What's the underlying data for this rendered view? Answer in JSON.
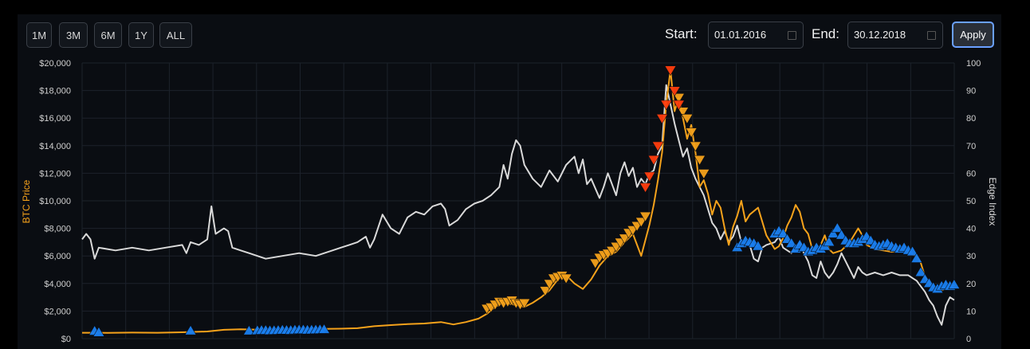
{
  "toolbar": {
    "range_buttons": [
      "1M",
      "3M",
      "6M",
      "1Y",
      "ALL"
    ],
    "start_label": "Start:",
    "start_value": "01.01.2016",
    "end_label": "End:",
    "end_value": "30.12.2018",
    "apply_label": "Apply"
  },
  "colors": {
    "price": "#f5a21b",
    "edge": "#d9d9d9",
    "buy_marker": "#1a7ff0",
    "sell_strong": "#ff3d0d",
    "sell_marker": "#f5a21b",
    "grid": "#1c222b",
    "background": "#0a0d12"
  },
  "chart_data": {
    "type": "line",
    "ylabel": "BTC Price",
    "y2label": "Edge Index",
    "ylim": [
      0,
      20000
    ],
    "y2lim": [
      0,
      100
    ],
    "yticks": [
      "$0",
      "$2,000",
      "$4,000",
      "$6,000",
      "$8,000",
      "$10,000",
      "$12,000",
      "$14,000",
      "$16,000",
      "$18,000",
      "$20,000"
    ],
    "y2ticks": [
      "0",
      "10",
      "20",
      "30",
      "40",
      "50",
      "60",
      "70",
      "80",
      "90",
      "100"
    ],
    "grid": true,
    "series": [
      {
        "role": "price",
        "points": [
          [
            0.0,
            430
          ],
          [
            0.03,
            420
          ],
          [
            0.06,
            440
          ],
          [
            0.09,
            430
          ],
          [
            0.12,
            460
          ],
          [
            0.15,
            520
          ],
          [
            0.17,
            640
          ],
          [
            0.19,
            680
          ],
          [
            0.21,
            650
          ],
          [
            0.23,
            630
          ],
          [
            0.25,
            660
          ],
          [
            0.27,
            700
          ],
          [
            0.29,
            710
          ],
          [
            0.31,
            720
          ],
          [
            0.33,
            760
          ],
          [
            0.35,
            900
          ],
          [
            0.37,
            980
          ],
          [
            0.39,
            1050
          ],
          [
            0.41,
            1100
          ],
          [
            0.43,
            1200
          ],
          [
            0.445,
            1030
          ],
          [
            0.46,
            1200
          ],
          [
            0.475,
            1450
          ],
          [
            0.485,
            1800
          ],
          [
            0.495,
            2300
          ],
          [
            0.505,
            2600
          ],
          [
            0.515,
            2500
          ],
          [
            0.53,
            2300
          ],
          [
            0.54,
            2600
          ],
          [
            0.55,
            3000
          ],
          [
            0.56,
            3500
          ],
          [
            0.57,
            4300
          ],
          [
            0.58,
            4600
          ],
          [
            0.59,
            4000
          ],
          [
            0.6,
            3600
          ],
          [
            0.61,
            4300
          ],
          [
            0.62,
            5300
          ],
          [
            0.63,
            6000
          ],
          [
            0.64,
            6300
          ],
          [
            0.65,
            7000
          ],
          [
            0.66,
            7600
          ],
          [
            0.67,
            6000
          ],
          [
            0.68,
            8300
          ],
          [
            0.685,
            9700
          ],
          [
            0.69,
            11500
          ],
          [
            0.695,
            13500
          ],
          [
            0.7,
            17000
          ],
          [
            0.705,
            19500
          ],
          [
            0.71,
            16500
          ],
          [
            0.715,
            17500
          ],
          [
            0.72,
            16000
          ],
          [
            0.725,
            14500
          ],
          [
            0.73,
            15500
          ],
          [
            0.735,
            13500
          ],
          [
            0.74,
            11000
          ],
          [
            0.745,
            11500
          ],
          [
            0.75,
            10500
          ],
          [
            0.755,
            9000
          ],
          [
            0.76,
            10000
          ],
          [
            0.765,
            9500
          ],
          [
            0.77,
            8000
          ],
          [
            0.775,
            6800
          ],
          [
            0.78,
            8100
          ],
          [
            0.785,
            8900
          ],
          [
            0.79,
            10000
          ],
          [
            0.795,
            8500
          ],
          [
            0.8,
            9000
          ],
          [
            0.81,
            9500
          ],
          [
            0.82,
            7500
          ],
          [
            0.83,
            6500
          ],
          [
            0.835,
            6700
          ],
          [
            0.84,
            7300
          ],
          [
            0.845,
            8200
          ],
          [
            0.85,
            8800
          ],
          [
            0.855,
            9700
          ],
          [
            0.86,
            9200
          ],
          [
            0.865,
            8000
          ],
          [
            0.87,
            7600
          ],
          [
            0.875,
            6500
          ],
          [
            0.88,
            6200
          ],
          [
            0.885,
            6800
          ],
          [
            0.89,
            7500
          ],
          [
            0.895,
            6500
          ],
          [
            0.9,
            6200
          ],
          [
            0.91,
            6400
          ],
          [
            0.92,
            7000
          ],
          [
            0.93,
            8000
          ],
          [
            0.935,
            7500
          ],
          [
            0.94,
            6800
          ],
          [
            0.95,
            6500
          ],
          [
            0.96,
            6400
          ],
          [
            0.97,
            6300
          ],
          [
            0.98,
            6400
          ],
          [
            0.99,
            6300
          ],
          [
            0.995,
            6100
          ],
          [
            1.0,
            6000
          ],
          [
            1.005,
            5500
          ],
          [
            1.01,
            4500
          ],
          [
            1.015,
            4000
          ],
          [
            1.02,
            3700
          ],
          [
            1.03,
            3500
          ],
          [
            1.04,
            3700
          ],
          [
            1.045,
            3900
          ]
        ]
      },
      {
        "role": "edge_index",
        "points": [
          [
            0.0,
            36
          ],
          [
            0.005,
            38
          ],
          [
            0.01,
            36
          ],
          [
            0.015,
            29
          ],
          [
            0.02,
            33
          ],
          [
            0.04,
            32
          ],
          [
            0.06,
            33
          ],
          [
            0.08,
            32
          ],
          [
            0.1,
            33
          ],
          [
            0.12,
            34
          ],
          [
            0.125,
            31
          ],
          [
            0.13,
            35
          ],
          [
            0.14,
            34
          ],
          [
            0.15,
            36
          ],
          [
            0.155,
            48
          ],
          [
            0.16,
            38
          ],
          [
            0.17,
            40
          ],
          [
            0.175,
            39
          ],
          [
            0.18,
            33
          ],
          [
            0.19,
            32
          ],
          [
            0.2,
            31
          ],
          [
            0.22,
            29
          ],
          [
            0.24,
            30
          ],
          [
            0.26,
            31
          ],
          [
            0.28,
            30
          ],
          [
            0.3,
            32
          ],
          [
            0.31,
            33
          ],
          [
            0.32,
            34
          ],
          [
            0.33,
            35
          ],
          [
            0.34,
            37
          ],
          [
            0.345,
            33
          ],
          [
            0.35,
            36
          ],
          [
            0.36,
            45
          ],
          [
            0.37,
            40
          ],
          [
            0.38,
            38
          ],
          [
            0.39,
            44
          ],
          [
            0.4,
            46
          ],
          [
            0.41,
            45
          ],
          [
            0.42,
            48
          ],
          [
            0.43,
            49
          ],
          [
            0.435,
            47
          ],
          [
            0.44,
            41
          ],
          [
            0.45,
            43
          ],
          [
            0.46,
            47
          ],
          [
            0.47,
            49
          ],
          [
            0.48,
            50
          ],
          [
            0.49,
            52
          ],
          [
            0.5,
            55
          ],
          [
            0.505,
            63
          ],
          [
            0.51,
            58
          ],
          [
            0.515,
            67
          ],
          [
            0.52,
            72
          ],
          [
            0.525,
            70
          ],
          [
            0.53,
            63
          ],
          [
            0.54,
            58
          ],
          [
            0.55,
            55
          ],
          [
            0.56,
            61
          ],
          [
            0.57,
            57
          ],
          [
            0.58,
            63
          ],
          [
            0.59,
            66
          ],
          [
            0.595,
            60
          ],
          [
            0.6,
            65
          ],
          [
            0.605,
            56
          ],
          [
            0.61,
            58
          ],
          [
            0.62,
            51
          ],
          [
            0.625,
            55
          ],
          [
            0.63,
            60
          ],
          [
            0.635,
            56
          ],
          [
            0.64,
            52
          ],
          [
            0.645,
            60
          ],
          [
            0.65,
            64
          ],
          [
            0.655,
            59
          ],
          [
            0.66,
            62
          ],
          [
            0.665,
            55
          ],
          [
            0.67,
            58
          ],
          [
            0.675,
            56
          ],
          [
            0.68,
            60
          ],
          [
            0.685,
            61
          ],
          [
            0.69,
            67
          ],
          [
            0.695,
            70
          ],
          [
            0.7,
            92
          ],
          [
            0.705,
            85
          ],
          [
            0.71,
            78
          ],
          [
            0.715,
            72
          ],
          [
            0.72,
            66
          ],
          [
            0.725,
            69
          ],
          [
            0.73,
            62
          ],
          [
            0.735,
            58
          ],
          [
            0.74,
            55
          ],
          [
            0.745,
            52
          ],
          [
            0.75,
            47
          ],
          [
            0.755,
            42
          ],
          [
            0.76,
            40
          ],
          [
            0.765,
            36
          ],
          [
            0.77,
            39
          ],
          [
            0.775,
            35
          ],
          [
            0.78,
            37
          ],
          [
            0.785,
            41
          ],
          [
            0.79,
            35
          ],
          [
            0.8,
            34
          ],
          [
            0.805,
            29
          ],
          [
            0.81,
            28
          ],
          [
            0.815,
            33
          ],
          [
            0.82,
            34
          ],
          [
            0.83,
            35
          ],
          [
            0.835,
            37
          ],
          [
            0.84,
            33
          ],
          [
            0.85,
            31
          ],
          [
            0.86,
            35
          ],
          [
            0.865,
            31
          ],
          [
            0.87,
            28
          ],
          [
            0.875,
            23
          ],
          [
            0.88,
            22
          ],
          [
            0.885,
            28
          ],
          [
            0.89,
            24
          ],
          [
            0.895,
            22
          ],
          [
            0.9,
            24
          ],
          [
            0.905,
            27
          ],
          [
            0.91,
            31
          ],
          [
            0.915,
            28
          ],
          [
            0.92,
            25
          ],
          [
            0.925,
            22
          ],
          [
            0.93,
            26
          ],
          [
            0.935,
            24
          ],
          [
            0.94,
            23
          ],
          [
            0.95,
            24
          ],
          [
            0.96,
            23
          ],
          [
            0.97,
            24
          ],
          [
            0.98,
            23
          ],
          [
            0.99,
            23
          ],
          [
            0.995,
            22
          ],
          [
            1.0,
            21
          ],
          [
            1.005,
            19
          ],
          [
            1.01,
            17
          ],
          [
            1.015,
            14
          ],
          [
            1.02,
            12
          ],
          [
            1.025,
            8
          ],
          [
            1.03,
            5
          ],
          [
            1.035,
            12
          ],
          [
            1.04,
            15
          ],
          [
            1.045,
            14
          ]
        ]
      }
    ],
    "markers": [
      {
        "kind": "buy",
        "x": [
          0.015,
          0.02,
          0.13,
          0.2,
          0.21,
          0.215,
          0.22,
          0.225,
          0.23,
          0.235,
          0.24,
          0.245,
          0.25,
          0.255,
          0.26,
          0.265,
          0.27,
          0.275,
          0.28,
          0.285,
          0.29
        ],
        "y": [
          540,
          440,
          560,
          560,
          580,
          600,
          600,
          580,
          590,
          600,
          620,
          610,
          600,
          630,
          640,
          640,
          620,
          630,
          640,
          650,
          660
        ]
      },
      {
        "kind": "sell",
        "x": [
          0.485,
          0.49,
          0.495,
          0.5,
          0.505,
          0.51,
          0.515,
          0.52,
          0.525,
          0.53,
          0.555,
          0.56,
          0.565,
          0.57,
          0.575,
          0.58,
          0.615,
          0.62,
          0.625,
          0.63,
          0.635,
          0.64,
          0.645,
          0.65,
          0.655,
          0.66,
          0.665,
          0.67,
          0.675,
          0.715,
          0.72,
          0.725,
          0.73,
          0.735,
          0.74,
          0.745
        ],
        "y": [
          2200,
          2300,
          2500,
          2700,
          2600,
          2700,
          2800,
          2600,
          2500,
          2600,
          3500,
          4000,
          4400,
          4500,
          4600,
          4400,
          5500,
          5900,
          6100,
          6200,
          6400,
          6700,
          7000,
          7300,
          7700,
          7900,
          8200,
          8500,
          8900,
          17500,
          16500,
          16000,
          15000,
          14000,
          13000,
          12000
        ]
      },
      {
        "kind": "sell_strong",
        "x": [
          0.675,
          0.68,
          0.685,
          0.69,
          0.695,
          0.7,
          0.705,
          0.71,
          0.715
        ],
        "y": [
          11000,
          11800,
          13000,
          14000,
          16000,
          17000,
          19500,
          18000,
          17000
        ]
      },
      {
        "kind": "buy",
        "x": [
          0.785,
          0.79,
          0.795,
          0.8,
          0.805,
          0.81,
          0.83,
          0.835,
          0.84,
          0.845,
          0.85,
          0.855,
          0.86,
          0.865,
          0.87,
          0.875,
          0.88,
          0.885,
          0.89,
          0.895,
          0.9,
          0.905,
          0.91,
          0.915,
          0.92,
          0.925,
          0.93,
          0.935,
          0.94,
          0.945,
          0.95,
          0.955,
          0.96,
          0.965,
          0.97,
          0.975,
          0.98,
          0.985,
          0.99,
          0.995,
          1.0,
          1.005,
          1.01,
          1.015,
          1.02,
          1.025,
          1.03,
          1.035,
          1.04,
          1.045
        ],
        "y": [
          6600,
          6900,
          7100,
          7000,
          6900,
          6700,
          7600,
          7800,
          7600,
          7200,
          6900,
          6500,
          6800,
          6600,
          6300,
          6400,
          6600,
          6500,
          6700,
          7000,
          7600,
          8000,
          7500,
          7100,
          6900,
          6900,
          7000,
          7200,
          7400,
          7100,
          6800,
          6700,
          6800,
          6900,
          6700,
          6600,
          6500,
          6600,
          6400,
          6300,
          5800,
          4800,
          4300,
          4000,
          3700,
          3600,
          3800,
          3900,
          3800,
          3900
        ]
      }
    ]
  }
}
